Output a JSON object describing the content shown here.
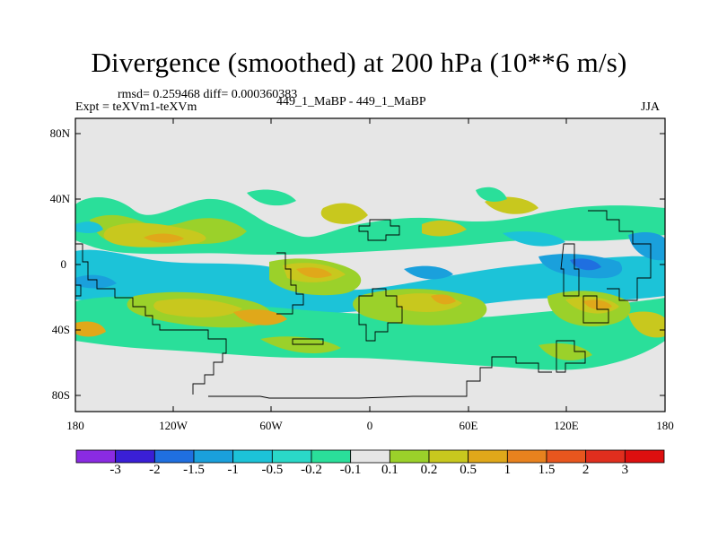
{
  "title": "Divergence (smoothed) at 200 hPa (10**6 m/s)",
  "stats": "rmsd= 0.259468 diff= 0.000360383",
  "experiment": "Expt = teXVm1-teXVm",
  "case": "449_1_MaBP - 449_1_MaBP",
  "season": "JJA",
  "map": {
    "lat_ticks": [
      "80N",
      "40N",
      "0",
      "40S",
      "80S"
    ],
    "lon_ticks": [
      "180",
      "120W",
      "60W",
      "0",
      "60E",
      "120E",
      "180"
    ]
  },
  "colorbar": {
    "labels": [
      "-3",
      "-2",
      "-1.5",
      "-1",
      "-0.5",
      "-0.2",
      "-0.1",
      "0.1",
      "0.2",
      "0.5",
      "1",
      "1.5",
      "2",
      "3"
    ],
    "colors": [
      "#8a2be2",
      "#3a1fd6",
      "#1f6fe0",
      "#1aa0dc",
      "#1cc3d8",
      "#2ad8c8",
      "#2adf9a",
      "#e6e6e6",
      "#9bd12a",
      "#c8c81e",
      "#e0a81a",
      "#e8821e",
      "#e8561e",
      "#e02e1e",
      "#dd0f0f"
    ]
  }
}
